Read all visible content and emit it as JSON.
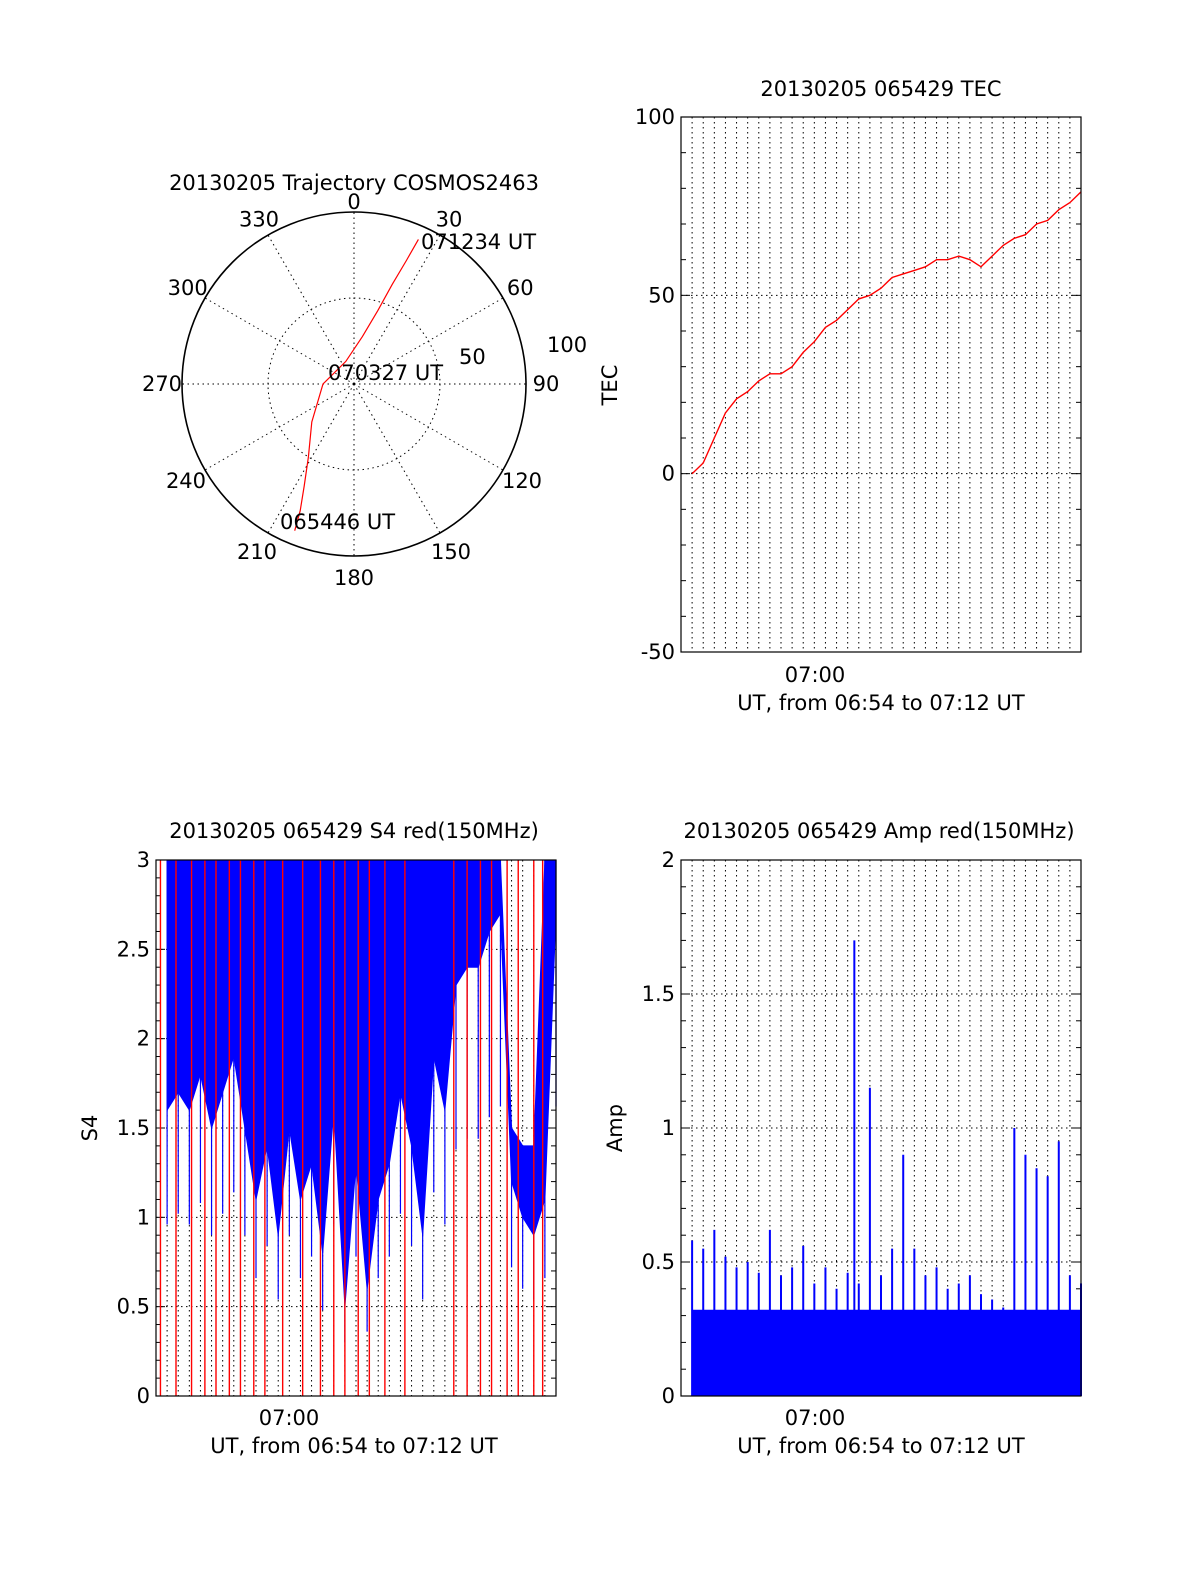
{
  "chart_data": [
    {
      "type": "polar",
      "title": "20130205 Trajectory COSMOS2463",
      "azimuth_labels": [
        "0",
        "30",
        "60",
        "90",
        "120",
        "150",
        "180",
        "210",
        "240",
        "270",
        "300",
        "330"
      ],
      "radial_labels": [
        "50",
        "100"
      ],
      "rlim": [
        0,
        100
      ],
      "annotations": [
        "071234 UT",
        "070327 UT",
        "065446 UT"
      ],
      "series": [
        {
          "color": "#ff0000",
          "points": [
            {
              "az": 202,
              "r": 92
            },
            {
              "az": 203,
              "r": 80
            },
            {
              "az": 206,
              "r": 66
            },
            {
              "az": 212,
              "r": 50
            },
            {
              "az": 228,
              "r": 33
            },
            {
              "az": 270,
              "r": 18
            },
            {
              "az": 340,
              "r": 14
            },
            {
              "az": 10,
              "r": 28
            },
            {
              "az": 18,
              "r": 45
            },
            {
              "az": 21,
              "r": 62
            },
            {
              "az": 23,
              "r": 78
            },
            {
              "az": 24,
              "r": 92
            }
          ]
        }
      ]
    },
    {
      "type": "line",
      "title": "20130205 065429 TEC",
      "ylabel": "TEC",
      "xlabel": "UT, from 06:54 to 07:12 UT",
      "xlim_minutes": [
        54,
        72
      ],
      "x_ticks": [
        {
          "at": 60,
          "label": "07:00"
        }
      ],
      "ylim": [
        -50,
        100
      ],
      "y_ticks": [
        "-50",
        "0",
        "50",
        "100"
      ],
      "grid": true,
      "series": [
        {
          "color": "#ff0000",
          "x_minutes": [
            54.5,
            55.0,
            55.5,
            56.0,
            56.5,
            57.0,
            57.5,
            58.0,
            58.5,
            59.0,
            59.5,
            60.0,
            60.5,
            61.0,
            61.5,
            62.0,
            62.5,
            63.0,
            63.5,
            64.0,
            64.5,
            65.0,
            65.5,
            66.0,
            66.5,
            67.0,
            67.5,
            68.0,
            68.5,
            69.0,
            69.5,
            70.0,
            70.5,
            71.0,
            71.5,
            72.0
          ],
          "values": [
            0,
            3,
            10,
            17,
            21,
            23,
            26,
            28,
            28,
            30,
            34,
            37,
            41,
            43,
            46,
            49,
            50,
            52,
            55,
            56,
            57,
            58,
            60,
            60,
            61,
            60,
            58,
            61,
            64,
            66,
            67,
            70,
            71,
            74,
            76,
            79
          ]
        }
      ]
    },
    {
      "type": "bar",
      "title": "20130205 065429 S4 red(150MHz)",
      "ylabel": "S4",
      "xlabel": "UT, from 06:54 to 07:12 UT",
      "xlim_minutes": [
        54,
        72
      ],
      "x_ticks": [
        {
          "at": 60,
          "label": "07:00"
        }
      ],
      "ylim": [
        0,
        3
      ],
      "y_ticks": [
        "0",
        "0.5",
        "1",
        "1.5",
        "2",
        "2.5",
        "3"
      ],
      "grid": true,
      "series": [
        {
          "color": "#0000ff",
          "x_minutes": [
            54.5,
            55.0,
            55.5,
            56.0,
            56.5,
            57.0,
            57.5,
            58.0,
            58.5,
            59.0,
            59.5,
            60.0,
            60.5,
            61.0,
            61.5,
            62.0,
            62.5,
            63.0,
            63.5,
            64.0,
            64.5,
            65.0,
            65.5,
            66.0,
            66.5,
            67.0,
            67.5,
            68.0,
            68.5,
            69.0,
            69.5,
            70.0,
            70.5,
            71.0,
            71.5,
            72.0
          ],
          "lower": [
            1.6,
            1.7,
            1.6,
            1.8,
            1.5,
            1.7,
            1.9,
            1.5,
            1.1,
            1.4,
            0.9,
            1.5,
            1.1,
            1.3,
            0.8,
            1.6,
            0.5,
            1.3,
            0.6,
            1.1,
            1.3,
            1.7,
            1.4,
            0.9,
            1.9,
            1.6,
            2.3,
            2.4,
            2.4,
            2.6,
            2.7,
            1.2,
            1.0,
            0.9,
            1.1,
            2.7
          ],
          "upper": [
            3,
            3,
            3,
            3,
            3,
            3,
            3,
            3,
            3,
            3,
            3,
            3,
            3,
            3,
            3,
            3,
            3,
            3,
            3,
            3,
            3,
            3,
            3,
            3,
            3,
            3,
            3,
            3,
            3,
            3,
            3,
            1.5,
            1.4,
            1.4,
            3,
            3
          ]
        },
        {
          "color": "#ff0000",
          "x_minutes": [
            54.2,
            54.9,
            55.6,
            56.2,
            56.7,
            57.3,
            57.8,
            58.4,
            58.9,
            59.7,
            60.6,
            61.4,
            62.0,
            62.5,
            63.1,
            63.6,
            64.3,
            65.2,
            67.4,
            68.0,
            68.6,
            69.1,
            69.8,
            70.3,
            71.0,
            71.4
          ],
          "values": [
            3,
            3,
            3,
            3,
            3,
            3,
            3,
            3,
            3,
            3,
            3,
            3,
            3,
            3,
            3,
            3,
            3,
            3,
            3,
            3,
            3,
            3,
            3,
            3,
            3,
            3
          ]
        }
      ]
    },
    {
      "type": "bar",
      "title": "20130205 065429 Amp red(150MHz)",
      "ylabel": "Amp",
      "xlabel": "UT, from 06:54 to 07:12 UT",
      "xlim_minutes": [
        54,
        72
      ],
      "x_ticks": [
        {
          "at": 60,
          "label": "07:00"
        }
      ],
      "ylim": [
        0,
        2
      ],
      "y_ticks": [
        "0",
        "0.5",
        "1",
        "1.5",
        "2"
      ],
      "grid": true,
      "series": [
        {
          "color": "#0000ff",
          "x_minutes": [
            54.5,
            55.0,
            55.5,
            56.0,
            56.5,
            57.0,
            57.5,
            58.0,
            58.5,
            59.0,
            59.5,
            60.0,
            60.5,
            61.0,
            61.5,
            61.8,
            62.0,
            62.5,
            63.0,
            63.5,
            64.0,
            64.5,
            65.0,
            65.5,
            66.0,
            66.5,
            67.0,
            67.5,
            68.0,
            68.5,
            69.0,
            69.5,
            70.0,
            70.5,
            71.0,
            71.5,
            72.0
          ],
          "values": [
            0.58,
            0.55,
            0.62,
            0.52,
            0.48,
            0.5,
            0.46,
            0.62,
            0.45,
            0.48,
            0.56,
            0.42,
            0.48,
            0.4,
            0.46,
            1.7,
            0.42,
            1.15,
            0.45,
            0.55,
            0.9,
            0.55,
            0.45,
            0.48,
            0.4,
            0.42,
            0.45,
            0.38,
            0.36,
            0.33,
            1.0,
            0.9,
            0.85,
            0.82,
            0.95,
            0.45,
            0.42
          ]
        }
      ]
    }
  ]
}
